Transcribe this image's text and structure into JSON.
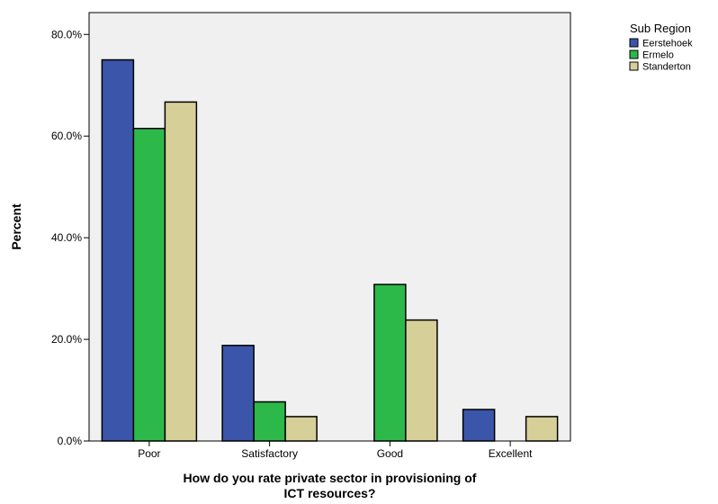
{
  "chart_data": {
    "type": "bar",
    "categories": [
      "Poor",
      "Satisfactory",
      "Good",
      "Excellent"
    ],
    "series": [
      {
        "name": "Eerstehoek",
        "values": [
          75.0,
          18.8,
          0.0,
          6.2
        ],
        "color": "#3b55aa"
      },
      {
        "name": "Ermelo",
        "values": [
          61.5,
          7.7,
          30.8,
          0.0
        ],
        "color": "#2db84a"
      },
      {
        "name": "Standerton",
        "values": [
          66.7,
          4.8,
          23.8,
          4.8
        ],
        "color": "#d6cf98"
      }
    ],
    "title": "",
    "xlabel_lines": [
      "How do you rate private sector  in provisioning of",
      "ICT resources?"
    ],
    "ylabel": "Percent",
    "ylim": [
      0,
      80
    ],
    "yticks": [
      0,
      20,
      40,
      60,
      80
    ],
    "ytick_labels": [
      "0.0%",
      "20.0%",
      "40.0%",
      "60.0%",
      "80.0%"
    ],
    "grid": false,
    "plot_background": "#f0f0f0",
    "legend": {
      "title": "Sub Region",
      "position": "top-right"
    }
  }
}
